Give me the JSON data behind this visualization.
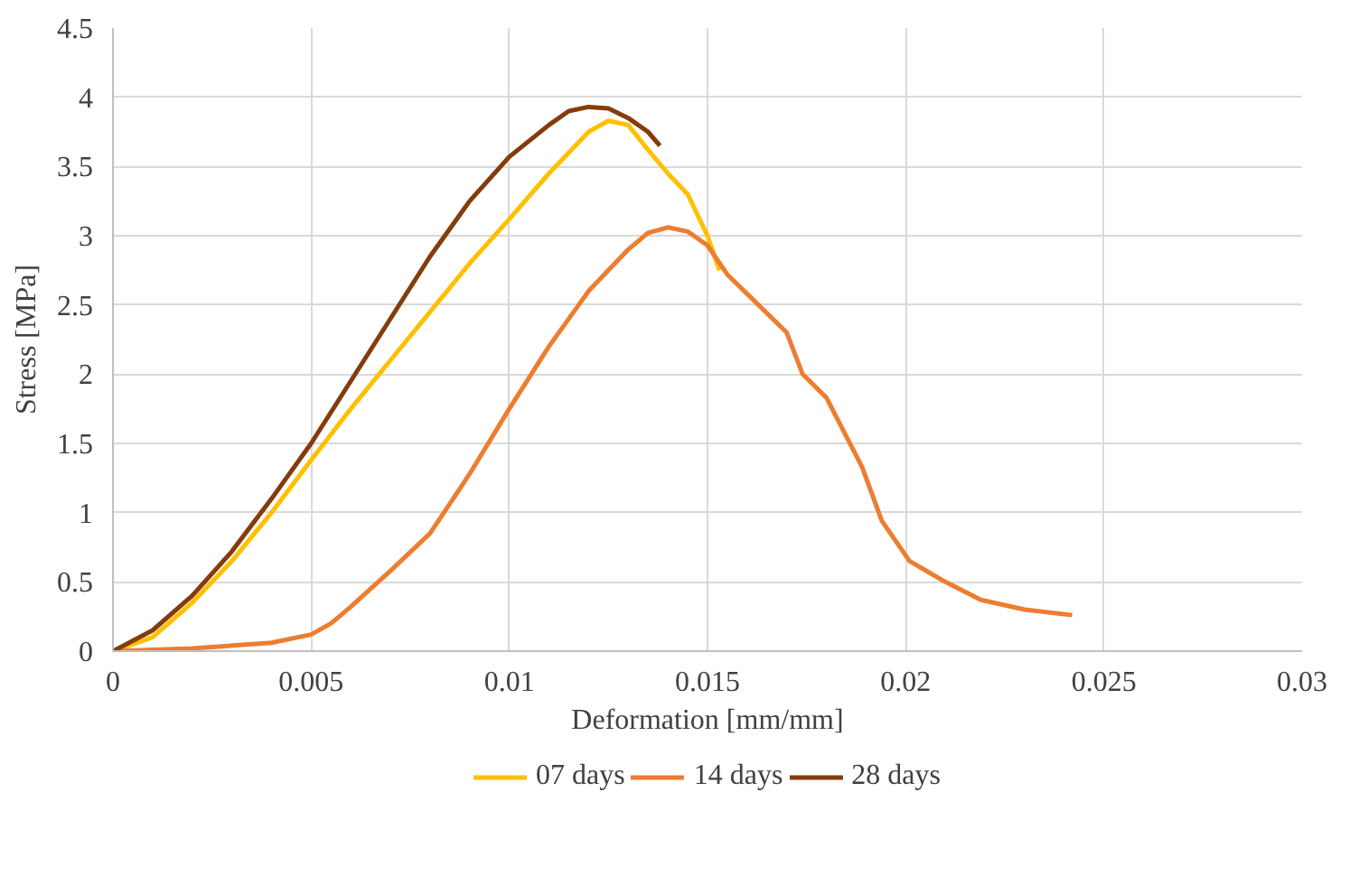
{
  "chart_data": {
    "type": "line",
    "xlabel": "Deformation [mm/mm]",
    "ylabel": "Stress [MPa]",
    "xlim": [
      0,
      0.03
    ],
    "ylim": [
      0,
      4.5
    ],
    "xticks": [
      0,
      0.005,
      0.01,
      0.015,
      0.02,
      0.025,
      0.03
    ],
    "yticks": [
      0,
      0.5,
      1,
      1.5,
      2,
      2.5,
      3,
      3.5,
      4,
      4.5
    ],
    "grid": true,
    "legend": "bottom",
    "marker": "none",
    "line_style": "solid",
    "series": [
      {
        "name": "07 days",
        "color": "#ffc000",
        "x": [
          0,
          0.001,
          0.002,
          0.003,
          0.004,
          0.005,
          0.006,
          0.007,
          0.008,
          0.009,
          0.01,
          0.011,
          0.0115,
          0.012,
          0.0125,
          0.013,
          0.0135,
          0.014,
          0.0145,
          0.015,
          0.0153
        ],
        "values": [
          0,
          0.1,
          0.35,
          0.65,
          1.0,
          1.38,
          1.75,
          2.1,
          2.45,
          2.8,
          3.12,
          3.45,
          3.6,
          3.75,
          3.83,
          3.8,
          3.62,
          3.45,
          3.3,
          3.0,
          2.75
        ]
      },
      {
        "name": "14 days",
        "color": "#ed7d31",
        "x": [
          0,
          0.002,
          0.004,
          0.005,
          0.0055,
          0.006,
          0.007,
          0.008,
          0.009,
          0.01,
          0.011,
          0.012,
          0.013,
          0.0135,
          0.014,
          0.0145,
          0.015,
          0.0155,
          0.016,
          0.017,
          0.0174,
          0.018,
          0.0189,
          0.0194,
          0.0201,
          0.021,
          0.0219,
          0.023,
          0.0242
        ],
        "values": [
          0,
          0.02,
          0.06,
          0.12,
          0.2,
          0.32,
          0.58,
          0.85,
          1.28,
          1.75,
          2.2,
          2.6,
          2.9,
          3.02,
          3.06,
          3.03,
          2.93,
          2.72,
          2.58,
          2.3,
          2.0,
          1.83,
          1.33,
          0.94,
          0.65,
          0.5,
          0.37,
          0.3,
          0.26
        ]
      },
      {
        "name": "28 days",
        "color": "#843c0c",
        "x": [
          0,
          0.001,
          0.002,
          0.003,
          0.004,
          0.005,
          0.006,
          0.007,
          0.008,
          0.009,
          0.01,
          0.011,
          0.0115,
          0.012,
          0.0125,
          0.013,
          0.0135,
          0.0138
        ],
        "values": [
          0,
          0.15,
          0.4,
          0.72,
          1.1,
          1.5,
          1.95,
          2.4,
          2.85,
          3.25,
          3.57,
          3.8,
          3.9,
          3.93,
          3.92,
          3.85,
          3.75,
          3.65
        ]
      }
    ]
  }
}
